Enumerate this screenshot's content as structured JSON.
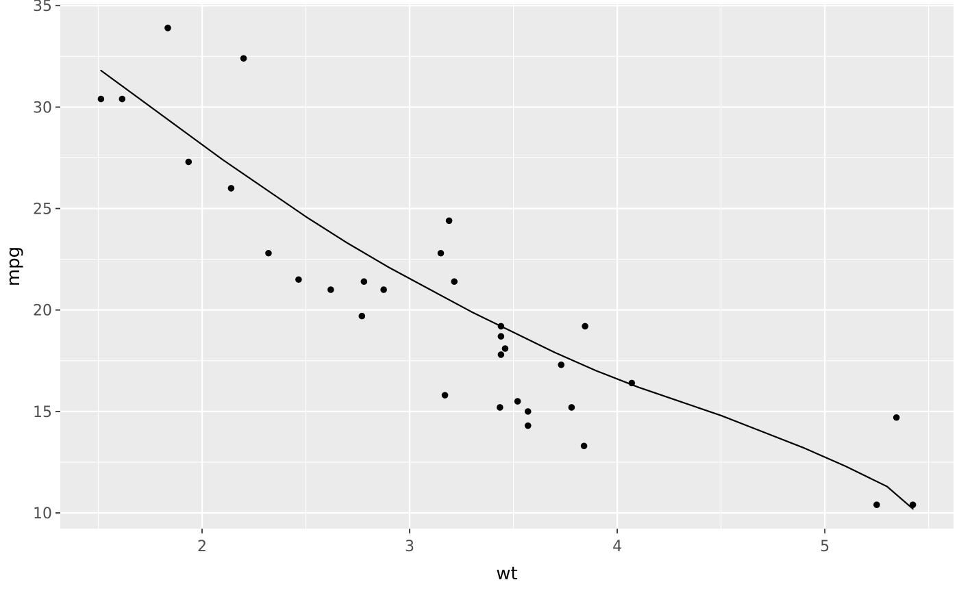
{
  "chart_data": {
    "type": "scatter",
    "title": "",
    "xlabel": "wt",
    "ylabel": "mpg",
    "x_ticks": [
      2,
      3,
      4,
      5
    ],
    "y_ticks": [
      10,
      15,
      20,
      25,
      30,
      35
    ],
    "x_minor_ticks": [
      1.5,
      2.5,
      3.5,
      4.5,
      5.5
    ],
    "y_minor_ticks": [
      12.5,
      17.5,
      22.5,
      27.5,
      32.5
    ],
    "xlim": [
      1.317,
      5.62
    ],
    "ylim": [
      9.225,
      35.075
    ],
    "grid": "on",
    "legend": "none",
    "points": [
      [
        2.62,
        21.0
      ],
      [
        2.875,
        21.0
      ],
      [
        2.32,
        22.8
      ],
      [
        3.215,
        21.4
      ],
      [
        3.44,
        18.7
      ],
      [
        3.46,
        18.1
      ],
      [
        3.57,
        14.3
      ],
      [
        3.19,
        24.4
      ],
      [
        3.15,
        22.8
      ],
      [
        3.44,
        19.2
      ],
      [
        3.44,
        17.8
      ],
      [
        4.07,
        16.4
      ],
      [
        3.73,
        17.3
      ],
      [
        3.78,
        15.2
      ],
      [
        5.25,
        10.4
      ],
      [
        5.424,
        10.4
      ],
      [
        5.345,
        14.7
      ],
      [
        2.2,
        32.4
      ],
      [
        1.615,
        30.4
      ],
      [
        1.835,
        33.9
      ],
      [
        2.465,
        21.5
      ],
      [
        3.52,
        15.5
      ],
      [
        3.435,
        15.2
      ],
      [
        3.84,
        13.3
      ],
      [
        3.845,
        19.2
      ],
      [
        1.935,
        27.3
      ],
      [
        2.14,
        26.0
      ],
      [
        1.513,
        30.4
      ],
      [
        3.17,
        15.8
      ],
      [
        2.77,
        19.7
      ],
      [
        3.57,
        15.0
      ],
      [
        2.78,
        21.4
      ]
    ],
    "smooth_line": [
      [
        1.513,
        31.8
      ],
      [
        1.7,
        30.4
      ],
      [
        1.9,
        28.9
      ],
      [
        2.1,
        27.4
      ],
      [
        2.3,
        26.0
      ],
      [
        2.5,
        24.6
      ],
      [
        2.7,
        23.3
      ],
      [
        2.9,
        22.1
      ],
      [
        3.1,
        21.0
      ],
      [
        3.3,
        19.9
      ],
      [
        3.5,
        18.9
      ],
      [
        3.7,
        17.9
      ],
      [
        3.9,
        17.0
      ],
      [
        4.1,
        16.2
      ],
      [
        4.3,
        15.5
      ],
      [
        4.5,
        14.8
      ],
      [
        4.7,
        14.0
      ],
      [
        4.9,
        13.2
      ],
      [
        5.1,
        12.3
      ],
      [
        5.3,
        11.3
      ],
      [
        5.424,
        10.2
      ]
    ],
    "colors": {
      "page_bg": "#FFFFFF",
      "panel_bg": "#EBEBEB",
      "grid": "#FFFFFF",
      "point": "#000000",
      "line": "#000000",
      "tick_mark": "#333333",
      "tick_label": "#4D4D4D",
      "axis_title": "#000000"
    }
  }
}
